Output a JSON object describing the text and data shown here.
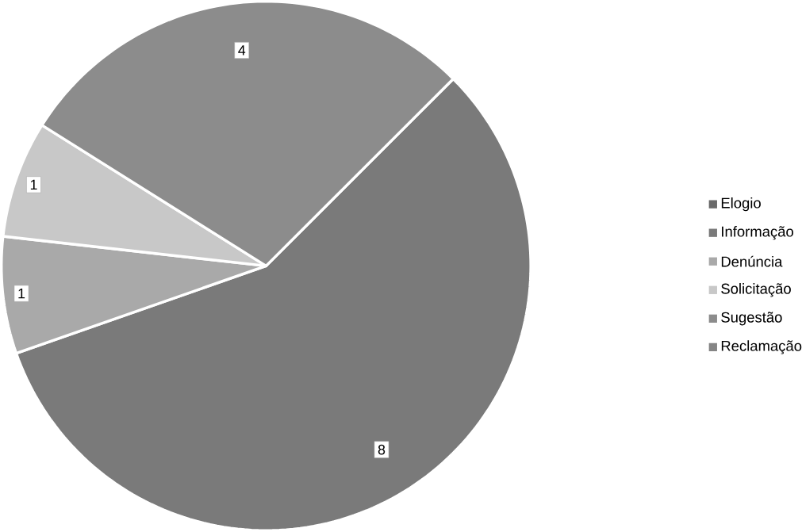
{
  "chart_data": {
    "type": "pie",
    "categories": [
      "Elogio",
      "Informação",
      "Denúncia",
      "Solicitação",
      "Sugestão",
      "Reclamação"
    ],
    "values": [
      0,
      8,
      1,
      1,
      4,
      0
    ],
    "colors": [
      "#6a6a6a",
      "#7a7a7a",
      "#a9a9a9",
      "#c8c8c8",
      "#8c8c8c",
      "#858585"
    ],
    "value_labels": [
      null,
      "8",
      "1",
      "1",
      "4",
      null
    ],
    "legend": "right"
  }
}
